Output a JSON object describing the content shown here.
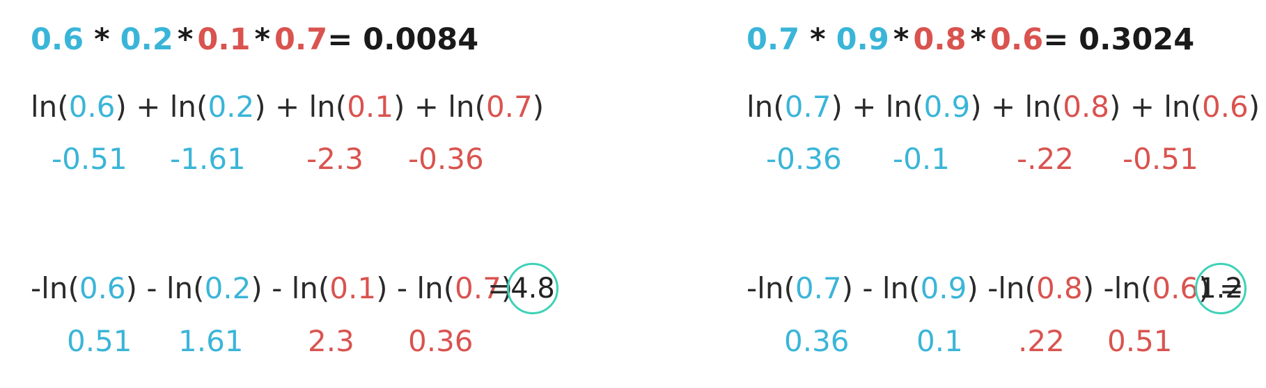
{
  "colors": {
    "blue": "#3ab5d8",
    "red": "#d9534f",
    "circle": "#3fd1b7"
  },
  "left": {
    "product": {
      "f1": "0.6",
      "op1": " * ",
      "f2": "0.2",
      "op2": "*",
      "f3": "0.1",
      "op3": "*",
      "f4": "0.7",
      "eq": "= 0.0084"
    },
    "logsum": {
      "t1a": "ln(",
      "a1": "0.6",
      "t1b": ") + ln(",
      "a2": "0.2",
      "t2b": ") + ln(",
      "a3": "0.1",
      "t3b": ") + ln(",
      "a4": "0.7",
      "t4b": ")"
    },
    "logvals": [
      "-0.51",
      "-1.61",
      "-2.3",
      "-0.36"
    ],
    "neglog": {
      "t1a": "-ln(",
      "a1": "0.6",
      "t1b": ") - ln(",
      "a2": "0.2",
      "t2b": ") - ln(",
      "a3": "0.1",
      "t3b": ") - ln(",
      "a4": "0.7",
      "t4b": ")",
      "eq": "="
    },
    "neglogvals": [
      "0.51",
      "1.61",
      "2.3",
      "0.36"
    ],
    "result": "4.8"
  },
  "right": {
    "product": {
      "f1": "0.7",
      "op1": " * ",
      "f2": "0.9",
      "op2": "*",
      "f3": "0.8",
      "op3": "*",
      "f4": "0.6",
      "eq": "= 0.3024"
    },
    "logsum": {
      "t1a": "ln(",
      "a1": "0.7",
      "t1b": ") + ln(",
      "a2": "0.9",
      "t2b": ") + ln(",
      "a3": "0.8",
      "t3b": ") + ln(",
      "a4": "0.6",
      "t4b": ")"
    },
    "logvals": [
      "-0.36",
      "-0.1",
      "-.22",
      "-0.51"
    ],
    "neglog": {
      "t1a": "-ln(",
      "a1": "0.7",
      "t1b": ") - ln(",
      "a2": "0.9",
      "t2b": ") -ln(",
      "a3": "0.8",
      "t3b": ") -ln(",
      "a4": "0.6",
      "t4b": ")",
      "eq": " ="
    },
    "neglogvals": [
      "0.36",
      "0.1",
      ".22",
      "0.51"
    ],
    "result": "1.2"
  }
}
